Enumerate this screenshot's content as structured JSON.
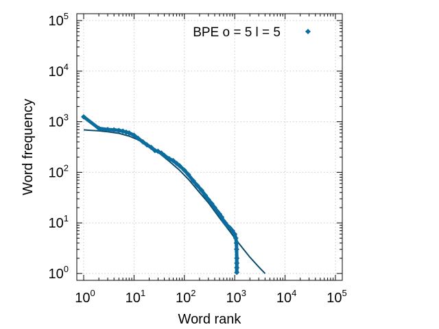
{
  "chart_data": {
    "type": "scatter",
    "xlabel": "Word rank",
    "ylabel": "Word frequency",
    "xscale": "log",
    "yscale": "log",
    "xlim": [
      1,
      100000
    ],
    "ylim": [
      1,
      100000
    ],
    "grid": true,
    "legend_position": "top-right",
    "x_ticks": [
      {
        "base": "10",
        "exp": "0",
        "value": 1
      },
      {
        "base": "10",
        "exp": "1",
        "value": 10
      },
      {
        "base": "10",
        "exp": "2",
        "value": 100
      },
      {
        "base": "10",
        "exp": "3",
        "value": 1000
      },
      {
        "base": "10",
        "exp": "4",
        "value": 10000
      },
      {
        "base": "10",
        "exp": "5",
        "value": 100000
      }
    ],
    "y_ticks": [
      {
        "base": "10",
        "exp": "0",
        "value": 1
      },
      {
        "base": "10",
        "exp": "1",
        "value": 10
      },
      {
        "base": "10",
        "exp": "2",
        "value": 100
      },
      {
        "base": "10",
        "exp": "3",
        "value": 1000
      },
      {
        "base": "10",
        "exp": "4",
        "value": 10000
      },
      {
        "base": "10",
        "exp": "5",
        "value": 100000
      }
    ],
    "series": [
      {
        "name": "BPE o = 5  l = 5",
        "color": "#0a6d9e",
        "marker": "diamond",
        "points": [
          [
            1,
            1250
          ],
          [
            2,
            740
          ],
          [
            3,
            700
          ],
          [
            4,
            690
          ],
          [
            5,
            670
          ],
          [
            6,
            650
          ],
          [
            7,
            620
          ],
          [
            8,
            600
          ],
          [
            10,
            540
          ],
          [
            12,
            470
          ],
          [
            15,
            400
          ],
          [
            18,
            350
          ],
          [
            22,
            310
          ],
          [
            26,
            270
          ],
          [
            30,
            260
          ],
          [
            35,
            240
          ],
          [
            40,
            215
          ],
          [
            50,
            185
          ],
          [
            60,
            170
          ],
          [
            70,
            150
          ],
          [
            80,
            135
          ],
          [
            100,
            110
          ],
          [
            120,
            90
          ],
          [
            150,
            68
          ],
          [
            180,
            55
          ],
          [
            220,
            44
          ],
          [
            260,
            35
          ],
          [
            300,
            29
          ],
          [
            350,
            24
          ],
          [
            400,
            20
          ],
          [
            450,
            17
          ],
          [
            500,
            15
          ],
          [
            550,
            13
          ],
          [
            600,
            11
          ],
          [
            650,
            10
          ],
          [
            700,
            9
          ],
          [
            800,
            8
          ],
          [
            900,
            7
          ],
          [
            1000,
            6
          ],
          [
            1050,
            5
          ],
          [
            1080,
            4
          ],
          [
            1090,
            3
          ],
          [
            1100,
            2
          ],
          [
            1100,
            1.6
          ],
          [
            1100,
            1.3
          ],
          [
            1100,
            1.05
          ]
        ]
      }
    ],
    "fit_line": {
      "color": "#0b4a6b",
      "points": [
        [
          1,
          690
        ],
        [
          2,
          660
        ],
        [
          3,
          635
        ],
        [
          5,
          590
        ],
        [
          8,
          520
        ],
        [
          12,
          440
        ],
        [
          20,
          330
        ],
        [
          30,
          250
        ],
        [
          50,
          165
        ],
        [
          80,
          110
        ],
        [
          120,
          73
        ],
        [
          200,
          40
        ],
        [
          300,
          25
        ],
        [
          500,
          12.5
        ],
        [
          800,
          6.8
        ],
        [
          1000,
          5.0
        ],
        [
          1500,
          3.0
        ],
        [
          2000,
          2.1
        ],
        [
          3000,
          1.35
        ],
        [
          4000,
          1.0
        ]
      ]
    }
  }
}
